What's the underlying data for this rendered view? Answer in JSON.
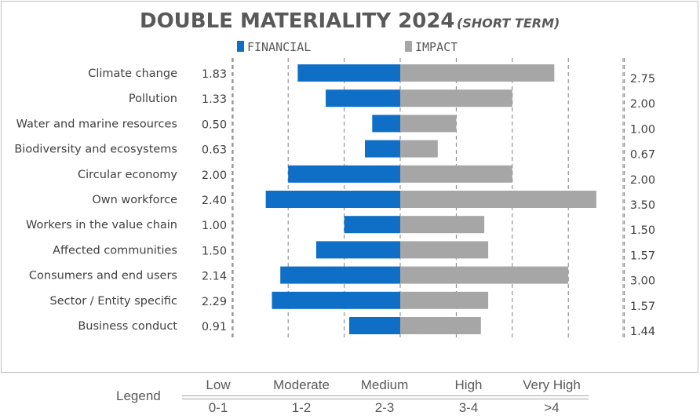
{
  "chart_data": {
    "type": "bar",
    "title": "DOUBLE MATERIALITY 2024",
    "subtitle": "(SHORT TERM)",
    "categories": [
      "Climate change",
      "Pollution",
      "Water and marine resources",
      "Biodiversity and ecosystems",
      "Circular economy",
      "Own workforce",
      "Workers in the value chain",
      "Affected communities",
      "Consumers and end users",
      "Sector / Entity specific",
      "Business conduct"
    ],
    "series": [
      {
        "name": "FINANCIAL",
        "color": "#0f6fc6",
        "values": [
          1.83,
          1.33,
          0.5,
          0.63,
          2.0,
          2.4,
          1.0,
          1.5,
          2.14,
          2.29,
          0.91
        ],
        "labels": [
          "1.83",
          "1.33",
          "0.50",
          "0.63",
          "2.00",
          "2.40",
          "1.00",
          "1.50",
          "2.14",
          "2.29",
          "0.91"
        ]
      },
      {
        "name": "IMPACT",
        "color": "#a6a6a6",
        "values": [
          2.75,
          2.0,
          1.0,
          0.67,
          2.0,
          3.5,
          1.5,
          1.57,
          3.0,
          1.57,
          1.44
        ],
        "labels": [
          "2.75",
          "2.00",
          "1.00",
          "0.67",
          "2.00",
          "3.50",
          "1.50",
          "1.57",
          "3.00",
          "1.57",
          "1.44"
        ]
      }
    ],
    "orientation": "horizontal diverging",
    "xlim": [
      -3,
      4
    ],
    "grid": "vertical dashed",
    "legend_position": "top-center",
    "colors": {
      "financial": "#0f6fc6",
      "impact": "#a6a6a6"
    }
  },
  "scale_legend": {
    "title": "Legend",
    "levels": [
      {
        "name": "Low",
        "range": "0-1"
      },
      {
        "name": "Moderate",
        "range": "1-2"
      },
      {
        "name": "Medium",
        "range": "2-3"
      },
      {
        "name": "High",
        "range": "3-4"
      },
      {
        "name": "Very High",
        "range": ">4"
      }
    ]
  }
}
